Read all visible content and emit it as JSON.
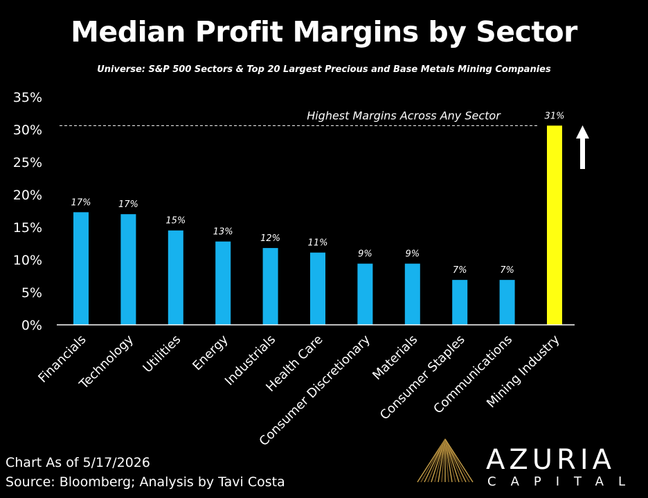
{
  "chart_data": {
    "type": "bar",
    "title": "Median Profit Margins by Sector",
    "subtitle": "Universe: S&P 500 Sectors & Top 20 Largest Precious and Base Metals Mining Companies",
    "categories": [
      "Financials",
      "Technology",
      "Utilities",
      "Energy",
      "Industrials",
      "Health Care",
      "Consumer Discretionary",
      "Materials",
      "Consumer Staples",
      "Communications",
      "Mining Industry"
    ],
    "values": [
      17.3,
      17.0,
      14.5,
      12.8,
      11.8,
      11.1,
      9.4,
      9.4,
      6.9,
      6.9,
      30.6
    ],
    "data_labels": [
      "17%",
      "17%",
      "15%",
      "13%",
      "12%",
      "11%",
      "9%",
      "9%",
      "7%",
      "7%",
      "31%"
    ],
    "ylim": [
      0,
      35
    ],
    "yticks": [
      0,
      5,
      10,
      15,
      20,
      25,
      30,
      35
    ],
    "ytick_labels": [
      "0%",
      "5%",
      "10%",
      "15%",
      "20%",
      "25%",
      "30%",
      "35%"
    ],
    "grid": false,
    "colors": {
      "default_bar": "#17B2EE",
      "highlight_bar": "#FFFF11",
      "background": "#000000",
      "text": "#FFFFFF"
    },
    "highlight_category": "Mining Industry",
    "reference_line": {
      "value": 30.6,
      "label": "Highest Margins Across Any Sector",
      "style": "dashed"
    },
    "annotation_arrow": "up"
  },
  "footer": {
    "date": "Chart As of 5/17/2026",
    "source": "Source: Bloomberg; Analysis by Tavi Costa"
  },
  "brand": {
    "name": "AZURIA",
    "sub": "CAPITAL",
    "logo_icon": "golden-rays-logo-icon"
  }
}
